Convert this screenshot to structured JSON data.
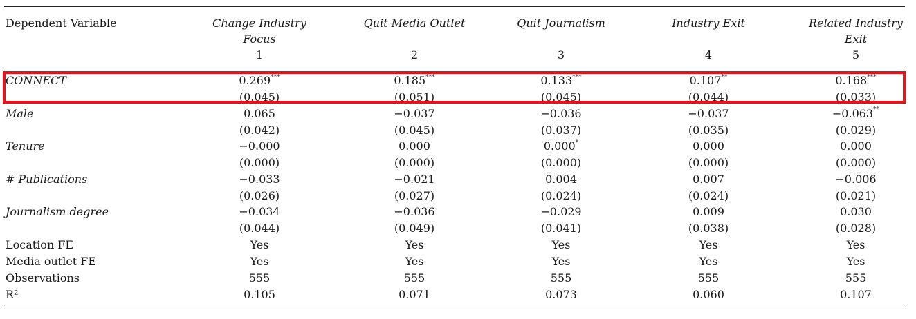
{
  "header": {
    "dep_var_label": "Dependent Variable",
    "columns": [
      {
        "title": "Change Industry Focus",
        "title_line1": "Change Industry",
        "title_line2": "Focus",
        "number": "1"
      },
      {
        "title": "Quit Media Outlet",
        "title_line1": "Quit Media Outlet",
        "title_line2": "",
        "number": "2"
      },
      {
        "title": "Quit Journalism",
        "title_line1": "Quit Journalism",
        "title_line2": "",
        "number": "3"
      },
      {
        "title": "Industry Exit",
        "title_line1": "Industry Exit",
        "title_line2": "",
        "number": "4"
      },
      {
        "title": "Related Industry Exit",
        "title_line1": "Related Industry",
        "title_line2": "Exit",
        "number": "5"
      }
    ]
  },
  "rows": [
    {
      "label": "CONNECT",
      "italic": true,
      "coef": [
        {
          "v": "0.269",
          "s": "***"
        },
        {
          "v": "0.185",
          "s": "***"
        },
        {
          "v": "0.133",
          "s": "***"
        },
        {
          "v": "0.107",
          "s": "**"
        },
        {
          "v": "0.168",
          "s": "***"
        }
      ],
      "se": [
        "(0.045)",
        "(0.051)",
        "(0.045)",
        "(0.044)",
        "(0.033)"
      ]
    },
    {
      "label": "Male",
      "italic": true,
      "coef": [
        {
          "v": "0.065",
          "s": ""
        },
        {
          "v": "−0.037",
          "s": ""
        },
        {
          "v": "−0.036",
          "s": ""
        },
        {
          "v": "−0.037",
          "s": ""
        },
        {
          "v": "−0.063",
          "s": "**"
        }
      ],
      "se": [
        "(0.042)",
        "(0.045)",
        "(0.037)",
        "(0.035)",
        "(0.029)"
      ]
    },
    {
      "label": "Tenure",
      "italic": true,
      "coef": [
        {
          "v": "−0.000",
          "s": ""
        },
        {
          "v": "0.000",
          "s": ""
        },
        {
          "v": "0.000",
          "s": "*"
        },
        {
          "v": "0.000",
          "s": ""
        },
        {
          "v": "0.000",
          "s": ""
        }
      ],
      "se": [
        "(0.000)",
        "(0.000)",
        "(0.000)",
        "(0.000)",
        "(0.000)"
      ]
    },
    {
      "label": "# Publications",
      "italic": true,
      "coef": [
        {
          "v": "−0.033",
          "s": ""
        },
        {
          "v": "−0.021",
          "s": ""
        },
        {
          "v": "0.004",
          "s": ""
        },
        {
          "v": "0.007",
          "s": ""
        },
        {
          "v": "−0.006",
          "s": ""
        }
      ],
      "se": [
        "(0.026)",
        "(0.027)",
        "(0.024)",
        "(0.024)",
        "(0.021)"
      ]
    },
    {
      "label": "Journalism degree",
      "italic": true,
      "coef": [
        {
          "v": "−0.034",
          "s": ""
        },
        {
          "v": "−0.036",
          "s": ""
        },
        {
          "v": "−0.029",
          "s": ""
        },
        {
          "v": "0.009",
          "s": ""
        },
        {
          "v": "0.030",
          "s": ""
        }
      ],
      "se": [
        "(0.044)",
        "(0.049)",
        "(0.041)",
        "(0.038)",
        "(0.028)"
      ]
    }
  ],
  "footer_rows": [
    {
      "label": "Location FE",
      "values": [
        "Yes",
        "Yes",
        "Yes",
        "Yes",
        "Yes"
      ]
    },
    {
      "label": "Media outlet FE",
      "values": [
        "Yes",
        "Yes",
        "Yes",
        "Yes",
        "Yes"
      ]
    },
    {
      "label": "Observations",
      "values": [
        "555",
        "555",
        "555",
        "555",
        "555"
      ]
    },
    {
      "label": "R²",
      "values": [
        "0.105",
        "0.071",
        "0.073",
        "0.060",
        "0.107"
      ]
    }
  ],
  "highlight": {
    "row": "CONNECT",
    "color": "#e5131a"
  }
}
